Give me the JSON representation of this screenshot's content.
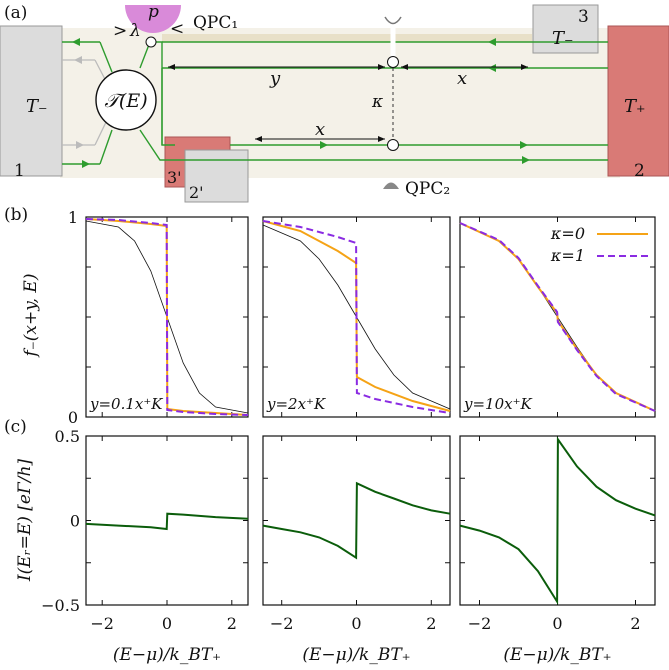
{
  "panel_a": {
    "label": "(a)",
    "transfer_label": "𝒯(E)",
    "p_label": "p",
    "lambda_label": "λ",
    "qpc1_label": "QPC₁",
    "qpc2_label": "QPC₂",
    "left_contact": {
      "temp": "T₋",
      "number": "1"
    },
    "right_contact": {
      "temp": "T₊",
      "number": "2"
    },
    "top_contact": {
      "temp": "T₋",
      "number": "3"
    },
    "bottom_contact_red": {
      "number": "3'"
    },
    "bottom_contact_grey": {
      "number": "2'"
    },
    "y_label": "y",
    "x_label_top": "x",
    "x_label_bottom": "x",
    "kappa_label": "κ",
    "colors": {
      "edge": "#2e9c2e",
      "hot": "#d97a76",
      "cold": "#dcdcdc",
      "p": "#d98ad9",
      "bg": "#f4f1e8"
    }
  },
  "panel_b": {
    "label": "(b)",
    "ylabel": "f₋(x+y, E)",
    "y_ticks": [
      "1",
      "0"
    ],
    "legend": [
      {
        "label": "κ=0",
        "color": "#f5a316"
      },
      {
        "label": "κ=1",
        "color": "#8a2be2"
      }
    ],
    "subplots": [
      {
        "annotation": "y=0.1x⁺K"
      },
      {
        "annotation": "y=2x⁺K"
      },
      {
        "annotation": "y=10x⁺K"
      }
    ]
  },
  "panel_c": {
    "label": "(c)",
    "ylabel": "I(Eᵣ=E) [eΓ/h]",
    "y_ticks": [
      "0.5",
      "0",
      "−0.5"
    ],
    "x_ticks": [
      "−2",
      "0",
      "2"
    ],
    "xlabel": "(E−μ)/k_BT₊",
    "line_color": "#0b5d0b"
  },
  "chart_data": [
    {
      "type": "line",
      "title": "(b)",
      "xlabel": "",
      "ylabel": "f₋(x+y, E)",
      "xlim": [
        -2.5,
        2.5
      ],
      "ylim": [
        0,
        1
      ],
      "subplots": [
        {
          "annotation": "y=0.1x⁺K",
          "series": [
            {
              "name": "κ=0",
              "x": [
                -2.5,
                -1.5,
                -0.5,
                -0.01,
                0.01,
                0.5,
                1.5,
                2.5
              ],
              "y": [
                0.99,
                0.98,
                0.965,
                0.955,
                0.04,
                0.03,
                0.02,
                0.01
              ]
            },
            {
              "name": "κ=1",
              "x": [
                -2.5,
                -1.5,
                -0.5,
                -0.01,
                0.01,
                0.5,
                1.5,
                2.5
              ],
              "y": [
                0.99,
                0.985,
                0.97,
                0.96,
                0.035,
                0.025,
                0.015,
                0.01
              ]
            },
            {
              "name": "",
              "x": [
                -2.5,
                -1.5,
                -1.0,
                -0.5,
                0,
                0.5,
                1.0,
                1.5,
                2.5
              ],
              "y": [
                0.98,
                0.95,
                0.88,
                0.73,
                0.5,
                0.27,
                0.12,
                0.05,
                0.02
              ]
            }
          ]
        },
        {
          "annotation": "y=2x⁺K",
          "series": [
            {
              "name": "κ=0",
              "x": [
                -2.5,
                -1.5,
                -0.5,
                -0.01,
                0.01,
                0.5,
                1.5,
                2.5
              ],
              "y": [
                0.98,
                0.93,
                0.83,
                0.77,
                0.2,
                0.15,
                0.08,
                0.03
              ]
            },
            {
              "name": "κ=1",
              "x": [
                -2.5,
                -1.5,
                -0.5,
                -0.01,
                0.01,
                0.5,
                1.5,
                2.5
              ],
              "y": [
                0.98,
                0.95,
                0.9,
                0.87,
                0.12,
                0.09,
                0.05,
                0.02
              ]
            },
            {
              "name": "",
              "x": [
                -2.5,
                -1.5,
                -1.0,
                -0.5,
                0,
                0.5,
                1.0,
                1.5,
                2.5
              ],
              "y": [
                0.96,
                0.88,
                0.79,
                0.66,
                0.5,
                0.34,
                0.21,
                0.12,
                0.04
              ]
            }
          ]
        },
        {
          "annotation": "y=10x⁺K",
          "series": [
            {
              "name": "κ=0",
              "x": [
                -2.5,
                -1.5,
                -1.0,
                -0.5,
                -0.01,
                0.01,
                0.5,
                1.0,
                1.5,
                2.5
              ],
              "y": [
                0.97,
                0.88,
                0.79,
                0.65,
                0.52,
                0.48,
                0.34,
                0.21,
                0.12,
                0.03
              ]
            },
            {
              "name": "κ=1",
              "x": [
                -2.5,
                -1.5,
                -1.0,
                -0.5,
                -0.01,
                0.01,
                0.5,
                1.0,
                1.5,
                2.5
              ],
              "y": [
                0.97,
                0.885,
                0.795,
                0.655,
                0.525,
                0.475,
                0.335,
                0.205,
                0.115,
                0.03
              ]
            },
            {
              "name": "",
              "x": [
                -2.5,
                -1.5,
                -1.0,
                -0.5,
                0,
                0.5,
                1.0,
                1.5,
                2.5
              ],
              "y": [
                0.97,
                0.88,
                0.79,
                0.65,
                0.5,
                0.35,
                0.21,
                0.12,
                0.03
              ]
            }
          ]
        }
      ]
    },
    {
      "type": "line",
      "title": "(c)",
      "xlabel": "(E−μ)/k_BT₊",
      "ylabel": "I(Eᵣ=E) [eΓ/h]",
      "xlim": [
        -2.5,
        2.5
      ],
      "ylim": [
        -0.5,
        0.5
      ],
      "subplots": [
        {
          "series": [
            {
              "name": "",
              "x": [
                -2.5,
                -1.5,
                -0.5,
                -0.01,
                0.01,
                0.5,
                1.5,
                2.5
              ],
              "y": [
                -0.02,
                -0.03,
                -0.04,
                -0.05,
                0.04,
                0.035,
                0.02,
                0.01
              ]
            }
          ]
        },
        {
          "series": [
            {
              "name": "",
              "x": [
                -2.5,
                -2.0,
                -1.5,
                -1.0,
                -0.5,
                -0.01,
                0.01,
                0.5,
                1.0,
                1.5,
                2.0,
                2.5
              ],
              "y": [
                -0.03,
                -0.05,
                -0.07,
                -0.1,
                -0.15,
                -0.22,
                0.22,
                0.17,
                0.13,
                0.09,
                0.06,
                0.04
              ]
            }
          ]
        },
        {
          "series": [
            {
              "name": "",
              "x": [
                -2.5,
                -2.0,
                -1.5,
                -1.0,
                -0.5,
                -0.01,
                0.01,
                0.5,
                1.0,
                1.5,
                2.0,
                2.5
              ],
              "y": [
                -0.03,
                -0.06,
                -0.1,
                -0.17,
                -0.3,
                -0.48,
                0.48,
                0.32,
                0.2,
                0.12,
                0.07,
                0.03
              ]
            }
          ]
        }
      ]
    }
  ]
}
